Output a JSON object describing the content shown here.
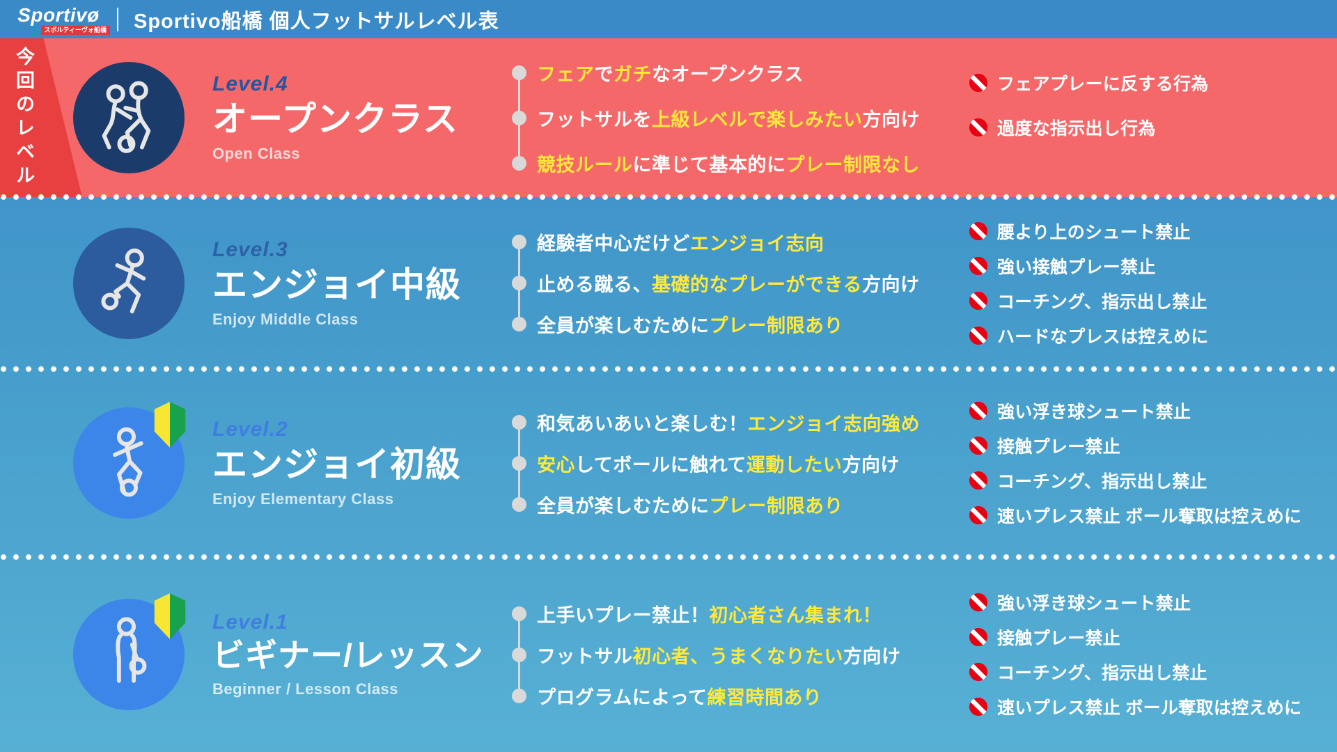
{
  "header": {
    "logo_text": "Sportivø",
    "logo_badge": "スポルティーヴォ船橋",
    "title": "Sportivo船橋 個人フットサルレベル表"
  },
  "ribbon": {
    "text": "今回のレベル"
  },
  "colors": {
    "highlight_yellow": "#ffe93c",
    "level4_band_red": "#f5686a",
    "ribbon_red": "#e84040",
    "prohibited_red": "#e60012",
    "header_blue": "#3a8ac8"
  },
  "levels": [
    {
      "label": "Level.4",
      "title": "オープンクラス",
      "subtitle": "Open Class",
      "icon": "two-players-icon",
      "current": true,
      "features": [
        [
          {
            "t": "フェア",
            "hl": true
          },
          {
            "t": "で"
          },
          {
            "t": "ガチ",
            "hl": true
          },
          {
            "t": "なオープンクラス"
          }
        ],
        [
          {
            "t": "フットサルを"
          },
          {
            "t": "上級レベルで楽しみたい",
            "hl": true
          },
          {
            "t": "方向け"
          }
        ],
        [
          {
            "t": "競技ルール",
            "hl": true
          },
          {
            "t": "に準じて基本的に"
          },
          {
            "t": "プレー制限なし",
            "hl": true
          }
        ]
      ],
      "rules": [
        "フェアプレーに反する行為",
        "過度な指示出し行為"
      ]
    },
    {
      "label": "Level.3",
      "title": "エンジョイ中級",
      "subtitle": "Enjoy Middle Class",
      "icon": "dribbling-player-icon",
      "current": false,
      "features": [
        [
          {
            "t": "経験者中心だけど"
          },
          {
            "t": "エンジョイ志向",
            "hl": true
          }
        ],
        [
          {
            "t": "止める蹴る、"
          },
          {
            "t": "基礎的なプレーができる",
            "hl": true
          },
          {
            "t": "方向け"
          }
        ],
        [
          {
            "t": "全員が楽しむために"
          },
          {
            "t": "プレー制限あり",
            "hl": true
          }
        ]
      ],
      "rules": [
        "腰より上のシュート禁止",
        "強い接触プレー禁止",
        "コーチング、指示出し禁止",
        "ハードなプレスは控えめに"
      ]
    },
    {
      "label": "Level.2",
      "title": "エンジョイ初級",
      "subtitle": "Enjoy Elementary Class",
      "icon": "running-player-icon",
      "current": false,
      "features": [
        [
          {
            "t": "和気あいあいと楽しむ！"
          },
          {
            "t": "エンジョイ志向強め",
            "hl": true
          }
        ],
        [
          {
            "t": "安心",
            "hl": true
          },
          {
            "t": "してボールに触れて"
          },
          {
            "t": "運動したい",
            "hl": true
          },
          {
            "t": "方向け"
          }
        ],
        [
          {
            "t": "全員が楽しむために"
          },
          {
            "t": "プレー制限あり",
            "hl": true
          }
        ]
      ],
      "rules": [
        "強い浮き球シュート禁止",
        "接触プレー禁止",
        "コーチング、指示出し禁止",
        "速いプレス禁止 ボール奪取は控えめに"
      ]
    },
    {
      "label": "Level.1",
      "title": "ビギナー/レッスン",
      "subtitle": "Beginner / Lesson Class",
      "icon": "standing-player-icon",
      "current": false,
      "features": [
        [
          {
            "t": "上手いプレー禁止！"
          },
          {
            "t": "初心者さん集まれ！",
            "hl": true
          }
        ],
        [
          {
            "t": "フットサル"
          },
          {
            "t": "初心者、うまくなりたい",
            "hl": true
          },
          {
            "t": "方向け"
          }
        ],
        [
          {
            "t": "プログラムによって"
          },
          {
            "t": "練習時間あり",
            "hl": true
          }
        ]
      ],
      "rules": [
        "強い浮き球シュート禁止",
        "接触プレー禁止",
        "コーチング、指示出し禁止",
        "速いプレス禁止 ボール奪取は控えめに"
      ]
    }
  ]
}
